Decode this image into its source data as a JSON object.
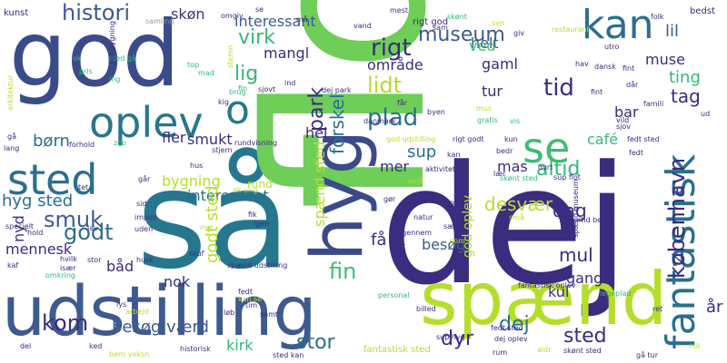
{
  "palette": {
    "background": "#ffffff",
    "dark_purple": "#440154",
    "indigo": "#3b2c7f",
    "blue": "#3e5a8f",
    "teal": "#26778e",
    "green_teal": "#1f9e89",
    "green": "#35b779",
    "light_green": "#6ece58",
    "lime": "#b5de2b",
    "yellow": "#fde725"
  },
  "words": [
    {
      "text": "så",
      "color": "#26778e"
    },
    {
      "text": "dej",
      "color": "#3b2c7f"
    },
    {
      "text": "flot",
      "color": "#6ece58"
    },
    {
      "text": "god",
      "color": "#3b4b8a"
    },
    {
      "text": "udstilling",
      "color": "#3e5a8f"
    },
    {
      "text": "spænd",
      "color": "#b5de2b"
    },
    {
      "text": "oplev",
      "color": "#26778e"
    },
    {
      "text": "hyg",
      "color": "#3b4b8a"
    },
    {
      "text": "fantastisk",
      "color": "#2a6f8e"
    },
    {
      "text": "kan",
      "color": "#2e6d8e"
    },
    {
      "text": "se",
      "color": "#3fbc73"
    },
    {
      "text": "sted",
      "color": "#2a6f8e"
    },
    {
      "text": "o",
      "color": "#26778e"
    },
    {
      "text": "histori",
      "color": "#3e5a8f"
    },
    {
      "text": "skøn",
      "color": "#46307e"
    },
    {
      "text": "interessant",
      "color": "#3e5a8f"
    },
    {
      "text": "museum",
      "color": "#3e5a8f"
    },
    {
      "text": "rigt",
      "color": "#3b2c7f"
    },
    {
      "text": "virk",
      "color": "#35b779"
    },
    {
      "text": "lig",
      "color": "#35b779"
    },
    {
      "text": "mangl",
      "color": "#3b2c7f"
    },
    {
      "text": "park",
      "color": "#3b2c7f"
    },
    {
      "text": "forskel",
      "color": "#2a6f8e"
    },
    {
      "text": "område",
      "color": "#3b2c7f"
    },
    {
      "text": "lidt",
      "color": "#b5de2b"
    },
    {
      "text": "plad",
      "color": "#2a6f8e"
    },
    {
      "text": "helt",
      "color": "#3e5a8f"
    },
    {
      "text": "ved",
      "color": "#3fbc73"
    },
    {
      "text": "gaml",
      "color": "#3b2c7f"
    },
    {
      "text": "tur",
      "color": "#3b2c7f"
    },
    {
      "text": "tid",
      "color": "#3b2c7f"
    },
    {
      "text": "lil",
      "color": "#3e5a8f"
    },
    {
      "text": "muse",
      "color": "#3b2c7f"
    },
    {
      "text": "ting",
      "color": "#35b779"
    },
    {
      "text": "tag",
      "color": "#3b2c7f"
    },
    {
      "text": "bar",
      "color": "#3b2c7f"
    },
    {
      "text": "café",
      "color": "#35b779"
    },
    {
      "text": "børn",
      "color": "#2a6f8e"
    },
    {
      "text": "fler",
      "color": "#3b2c7f"
    },
    {
      "text": "smukt",
      "color": "#3b2c7f"
    },
    {
      "text": "hel",
      "color": "#3b2c7f"
    },
    {
      "text": "mer",
      "color": "#3b2c7f"
    },
    {
      "text": "sup",
      "color": "#2a6f8e"
    },
    {
      "text": "mas",
      "color": "#3b2c7f"
    },
    {
      "text": "altid",
      "color": "#35b779"
    },
    {
      "text": "hyg sted",
      "color": "#2a6f8e"
    },
    {
      "text": "smuk",
      "color": "#3e5a8f"
    },
    {
      "text": "godt",
      "color": "#2a6f8e"
    },
    {
      "text": "nyd",
      "color": "#3b2c7f"
    },
    {
      "text": "mennesk",
      "color": "#3b2c7f"
    },
    {
      "text": "bygning",
      "color": "#b5de2b"
    },
    {
      "text": "rund",
      "color": "#b5de2b"
    },
    {
      "text": "interessant",
      "color": "#2a6f8e"
    },
    {
      "text": "godt sted",
      "color": "#b5de2b"
    },
    {
      "text": "spænd sted",
      "color": "#b5de2b"
    },
    {
      "text": "få",
      "color": "#3b2c7f"
    },
    {
      "text": "fin",
      "color": "#3fbc73"
    },
    {
      "text": "besøg",
      "color": "#3e5a8f"
    },
    {
      "text": "desvær",
      "color": "#b5de2b"
    },
    {
      "text": "dag",
      "color": "#3b2c7f"
    },
    {
      "text": "københavn",
      "color": "#3b2c7f"
    },
    {
      "text": "mul",
      "color": "#3b2c7f"
    },
    {
      "text": "gang",
      "color": "#3b2c7f"
    },
    {
      "text": "kul",
      "color": "#3b2c7f"
    },
    {
      "text": "båd",
      "color": "#3b2c7f"
    },
    {
      "text": "nok",
      "color": "#3b2c7f"
    },
    {
      "text": "god oplev",
      "color": "#b5de2b"
    },
    {
      "text": "kom",
      "color": "#3b2c7f"
    },
    {
      "text": "besøg værd",
      "color": "#3e5a8f"
    },
    {
      "text": "kirk",
      "color": "#35b779"
    },
    {
      "text": "stor",
      "color": "#2a6f8e"
    },
    {
      "text": "dyr",
      "color": "#3b2c7f"
    },
    {
      "text": "dej",
      "color": "#2a6f8e"
    },
    {
      "text": "sted",
      "color": "#3b2c7f"
    },
    {
      "text": "år",
      "color": "#3b2c7f"
    }
  ],
  "small_words": [
    {
      "text": "kunst",
      "color": "#3b2c7f"
    },
    {
      "text": "samling",
      "color": "#9a9a9a"
    },
    {
      "text": "omgiv",
      "color": "#3b2c7f"
    },
    {
      "text": "se",
      "color": "#3b2c7f"
    },
    {
      "text": "må",
      "color": "#3b2c7f"
    },
    {
      "text": "vand",
      "color": "#3b2c7f"
    },
    {
      "text": "mest",
      "color": "#3b2c7f"
    },
    {
      "text": "sam",
      "color": "#3b2c7f"
    },
    {
      "text": "rigt god",
      "color": "#3b2c7f"
    },
    {
      "text": "skønt",
      "color": "#35b779"
    },
    {
      "text": "syn",
      "color": "#b5de2b"
    },
    {
      "text": "giv",
      "color": "#3b2c7f"
    },
    {
      "text": "restaurant",
      "color": "#b5de2b"
    },
    {
      "text": "folk",
      "color": "#3b2c7f"
    },
    {
      "text": "bedst",
      "color": "#3b2c7f"
    },
    {
      "text": "arkitektur",
      "color": "#b5de2b"
    },
    {
      "text": "ok",
      "color": "#35b779"
    },
    {
      "text": "sted gå",
      "color": "#35b779"
    },
    {
      "text": "flot bygning",
      "color": "#3b2c7f"
    },
    {
      "text": "pris",
      "color": "#35b779"
    },
    {
      "text": "ing",
      "color": "#35b779"
    },
    {
      "text": "top",
      "color": "#35b779"
    },
    {
      "text": "mad",
      "color": "#35b779"
    },
    {
      "text": "stemn",
      "color": "#b5de2b"
    },
    {
      "text": "ind",
      "color": "#3b2c7f"
    },
    {
      "text": "sjovt",
      "color": "#3b2c7f"
    },
    {
      "text": "brug",
      "color": "#35b779"
    },
    {
      "text": "kig",
      "color": "#3b2c7f"
    },
    {
      "text": "fin",
      "color": "#35b779"
    },
    {
      "text": "danmark",
      "color": "#3b2c7f"
    },
    {
      "text": "får",
      "color": "#3b2c7f"
    },
    {
      "text": "byen",
      "color": "#3b2c7f"
    },
    {
      "text": "gratis",
      "color": "#35b779"
    },
    {
      "text": "mus",
      "color": "#b5de2b"
    },
    {
      "text": "vis",
      "color": "#35b779"
    },
    {
      "text": "fint",
      "color": "#3b2c7f"
    },
    {
      "text": "dansk",
      "color": "#3b2c7f"
    },
    {
      "text": "dår",
      "color": "#3b2c7f"
    },
    {
      "text": "hav",
      "color": "#3b2c7f"
    },
    {
      "text": "fint",
      "color": "#3b2c7f"
    },
    {
      "text": "famili",
      "color": "#3b2c7f"
    },
    {
      "text": "vild",
      "color": "#3b2c7f"
    },
    {
      "text": "sjov",
      "color": "#3b2c7f"
    },
    {
      "text": "fedt sted",
      "color": "#3b2c7f"
    },
    {
      "text": "ud",
      "color": "#3b2c7f"
    },
    {
      "text": "utro",
      "color": "#3b2c7f"
    },
    {
      "text": "gå",
      "color": "#3b2c7f"
    },
    {
      "text": "lang",
      "color": "#3b2c7f"
    },
    {
      "text": "forhold",
      "color": "#3b2c7f"
    },
    {
      "text": "zoo",
      "color": "#35b779"
    },
    {
      "text": "stjern",
      "color": "#3b2c7f"
    },
    {
      "text": "rundvisning",
      "color": "#3b2c7f"
    },
    {
      "text": "god udstilling",
      "color": "#b5de2b"
    },
    {
      "text": "rigt godt",
      "color": "#3b2c7f"
    },
    {
      "text": "kun",
      "color": "#3b2c7f"
    },
    {
      "text": "bedr",
      "color": "#3b2c7f"
    },
    {
      "text": "kan",
      "color": "#3b2c7f"
    },
    {
      "text": "aktivitet",
      "color": "#3b2c7f"
    },
    {
      "text": "dyrt",
      "color": "#3b2c7f"
    },
    {
      "text": "sup flot",
      "color": "#3b2c7f"
    },
    {
      "text": "lær",
      "color": "#3b2c7f"
    },
    {
      "text": "små",
      "color": "#b5de2b"
    },
    {
      "text": "hus",
      "color": "#3b2c7f"
    },
    {
      "text": "går",
      "color": "#3b2c7f"
    },
    {
      "text": "tet",
      "color": "#3b2c7f"
    },
    {
      "text": "specielt",
      "color": "#3b2c7f"
    },
    {
      "text": "hold",
      "color": "#3b2c7f"
    },
    {
      "text": "sid",
      "color": "#3b2c7f"
    },
    {
      "text": "ak ung",
      "color": "#b5de2b"
    },
    {
      "text": "impon",
      "color": "#3b2c7f"
    },
    {
      "text": "uden",
      "color": "#3b2c7f"
    },
    {
      "text": "nye",
      "color": "#b5de2b"
    },
    {
      "text": "gør",
      "color": "#3b2c7f"
    },
    {
      "text": "natur",
      "color": "#3b2c7f"
    },
    {
      "text": "andr",
      "color": "#3b2c7f"
    },
    {
      "text": "skønt sted",
      "color": "#35b779"
    },
    {
      "text": "hund",
      "color": "#3b2c7f"
    },
    {
      "text": "altid besøg",
      "color": "#3b2c7f"
    },
    {
      "text": "fik",
      "color": "#3b2c7f"
    },
    {
      "text": "igen",
      "color": "#3b2c7f"
    },
    {
      "text": "lav",
      "color": "#3b2c7f"
    },
    {
      "text": "kaf",
      "color": "#3b2c7f"
    },
    {
      "text": "stor",
      "color": "#3b2c7f"
    },
    {
      "text": "husk",
      "color": "#3b2c7f"
    },
    {
      "text": "spænd udstilling",
      "color": "#3b2c7f"
    },
    {
      "text": "igennem",
      "color": "#3b2c7f"
    },
    {
      "text": "set",
      "color": "#3b2c7f"
    },
    {
      "text": "sær",
      "color": "#3b2c7f"
    },
    {
      "text": "personal",
      "color": "#35b779"
    },
    {
      "text": "som",
      "color": "#b5de2b"
    },
    {
      "text": "små",
      "color": "#b5de2b"
    },
    {
      "text": "billed",
      "color": "#3b2c7f"
    },
    {
      "text": "fantastisk oplev",
      "color": "#3b2c7f"
    },
    {
      "text": "legeplad",
      "color": "#35b779"
    },
    {
      "text": "ret",
      "color": "#3b2c7f"
    },
    {
      "text": "fedt",
      "color": "#3b2c7f"
    },
    {
      "text": "kan se",
      "color": "#b5de2b"
    },
    {
      "text": "tim",
      "color": "#3b2c7f"
    },
    {
      "text": "løb",
      "color": "#3b2c7f"
    },
    {
      "text": "samt",
      "color": "#3b2c7f"
    },
    {
      "text": "lys",
      "color": "#3b2c7f"
    },
    {
      "text": "arbejd",
      "color": "#b5de2b"
    },
    {
      "text": "fantastisk sted",
      "color": "#b5de2b"
    },
    {
      "text": "sup hyg",
      "color": "#3b2c7f"
    },
    {
      "text": "dej oplev",
      "color": "#3b2c7f"
    },
    {
      "text": "aldr",
      "color": "#b5de2b"
    },
    {
      "text": "skønt sted",
      "color": "#3b2c7f"
    },
    {
      "text": "gå tur",
      "color": "#3b2c7f"
    },
    {
      "text": "historisk",
      "color": "#3b2c7f"
    },
    {
      "text": "del",
      "color": "#3b2c7f"
    },
    {
      "text": "ked",
      "color": "#3b2c7f"
    },
    {
      "text": "børn voksn",
      "color": "#b5de2b"
    },
    {
      "text": "sted kan",
      "color": "#3b2c7f"
    },
    {
      "text": "mil",
      "color": "#b5de2b"
    },
    {
      "text": "rum",
      "color": "#3b2c7f"
    },
    {
      "text": "hvilk",
      "color": "#3b2c7f"
    },
    {
      "text": "især",
      "color": "#3b2c7f"
    },
    {
      "text": "omkring",
      "color": "#35b779"
    },
    {
      "text": "dej park",
      "color": "#3b2c7f"
    },
    {
      "text": "skuf",
      "color": "#3b2c7f"
    },
    {
      "text": "fedt sted",
      "color": "#3b2c7f"
    },
    {
      "text": "fedt",
      "color": "#3b2c7f"
    },
    {
      "text": "spænd museum",
      "color": "#3b2c7f"
    }
  ]
}
